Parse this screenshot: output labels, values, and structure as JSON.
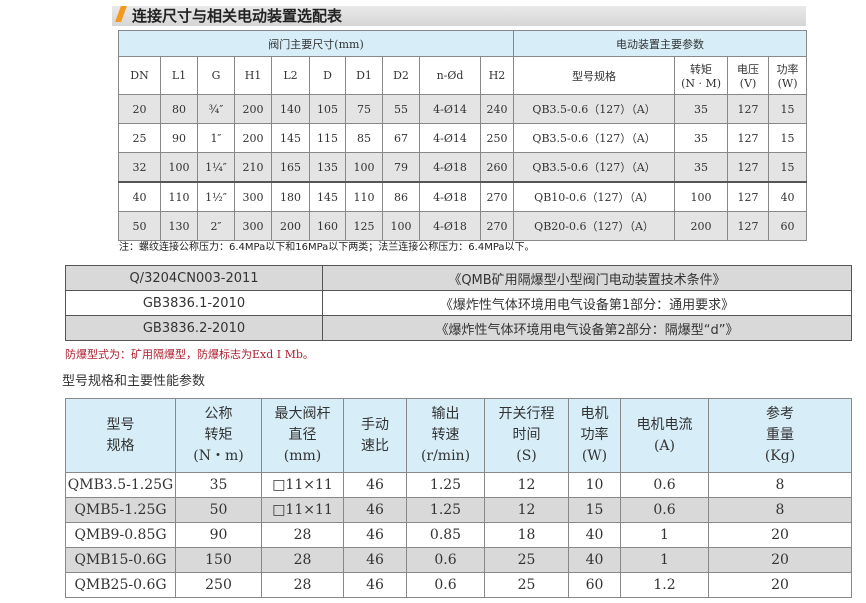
{
  "title": "连接尺寸与相关电动装置选配表",
  "table1": {
    "group1": "阀门主要尺寸(mm)",
    "group2": "电动装置主要参数",
    "headers": [
      "DN",
      "L1",
      "G",
      "H1",
      "L2",
      "D",
      "D1",
      "D2",
      "n-Ød",
      "H2",
      "型号规格",
      "转矩\n(N · M)",
      "电压\n(V)",
      "功率\n(W)"
    ],
    "rows": [
      [
        "20",
        "80",
        "¾″",
        "200",
        "140",
        "105",
        "75",
        "55",
        "4-Ø14",
        "240",
        "QB3.5-0.6（127）（A）",
        "35",
        "127",
        "15"
      ],
      [
        "25",
        "90",
        "1″",
        "200",
        "145",
        "115",
        "85",
        "67",
        "4-Ø14",
        "250",
        "QB3.5-0.6（127）（A）",
        "35",
        "127",
        "15"
      ],
      [
        "32",
        "100",
        "1¼″",
        "210",
        "165",
        "135",
        "100",
        "79",
        "4-Ø18",
        "260",
        "QB3.5-0.6（127）（A）",
        "35",
        "127",
        "15"
      ],
      [
        "40",
        "110",
        "1½″",
        "300",
        "180",
        "145",
        "110",
        "86",
        "4-Ø18",
        "270",
        "QB10-0.6（127）（A）",
        "100",
        "127",
        "40"
      ],
      [
        "50",
        "130",
        "2″",
        "300",
        "200",
        "160",
        "125",
        "100",
        "4-Ø18",
        "270",
        "QB20-0.6（127）（A）",
        "200",
        "127",
        "60"
      ]
    ]
  },
  "note": "注：螺纹连接公称压力：6.4MPa以下和16MPa以下两类；法兰连接公称压力：6.4MPa以下。",
  "standards": [
    [
      "Q/3204CN003-2011",
      "《QMB矿用隔爆型小型阀门电动装置技术条件》"
    ],
    [
      "GB3836.1-2010",
      "《爆炸性气体环境用电气设备第1部分：通用要求》"
    ],
    [
      "GB3836.2-2010",
      "《爆炸性气体环境用电气设备第2部分：隔爆型“d”》"
    ]
  ],
  "explosion_note": "防爆型式为：矿用隔爆型，防爆标志为Exd I  Mb。",
  "section_title": "型号规格和主要性能参数",
  "table3": {
    "headers": [
      "型号\n规格",
      "公称\n转矩\n(N・m)",
      "最大阀杆\n直径\n(mm)",
      "手动\n速比",
      "输出\n转速\n(r/min)",
      "开关行程\n时间\n(S)",
      "电机\n功率\n(W)",
      "电机电流\n(A)",
      "参考\n重量\n(Kg)"
    ],
    "rows": [
      [
        "QMB3.5-1.25G",
        "35",
        "□11×11",
        "46",
        "1.25",
        "12",
        "10",
        "0.6",
        "8"
      ],
      [
        "QMB5-1.25G",
        "50",
        "□11×11",
        "46",
        "1.25",
        "12",
        "15",
        "0.6",
        "8"
      ],
      [
        "QMB9-0.85G",
        "90",
        "28",
        "46",
        "0.85",
        "18",
        "40",
        "1",
        "20"
      ],
      [
        "QMB15-0.6G",
        "150",
        "28",
        "46",
        "0.6",
        "25",
        "40",
        "1",
        "20"
      ],
      [
        "QMB25-0.6G",
        "250",
        "28",
        "46",
        "0.6",
        "25",
        "60",
        "1.2",
        "20"
      ]
    ]
  },
  "colors": {
    "header_blue": "#d7eef8",
    "accent_orange": "#f39a1e",
    "note_red": "#b02030",
    "row_gray": "#e4e4e4"
  }
}
